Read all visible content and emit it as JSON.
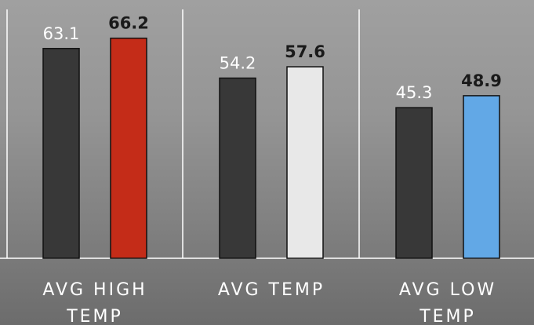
{
  "chart_data": {
    "type": "bar",
    "categories": [
      "AVG HIGH TEMP",
      "AVG TEMP",
      "AVG LOW TEMP"
    ],
    "category_lines": [
      [
        "AVG HIGH",
        "TEMP"
      ],
      [
        "AVG TEMP"
      ],
      [
        "AVG LOW",
        "TEMP"
      ]
    ],
    "values": [
      [
        63.1,
        66.2
      ],
      [
        54.2,
        57.6
      ],
      [
        45.3,
        48.9
      ]
    ],
    "value_labels": [
      [
        "63.1",
        "66.2"
      ],
      [
        "54.2",
        "57.6"
      ],
      [
        "45.3",
        "48.9"
      ]
    ],
    "emphasized_index": 1,
    "ylim": [
      0,
      70
    ],
    "grid": false,
    "legend": "none",
    "bar_colors": [
      [
        "#383838",
        "#c42c18"
      ],
      [
        "#383838",
        "#e8e8e8"
      ],
      [
        "#383838",
        "#62a8e6"
      ]
    ],
    "bar_outline_color": "#111111",
    "label_color": "#ffffff",
    "bold_label_color": "#1a1a1a",
    "divider_color": "#ffffff",
    "background_color": "#959595"
  }
}
